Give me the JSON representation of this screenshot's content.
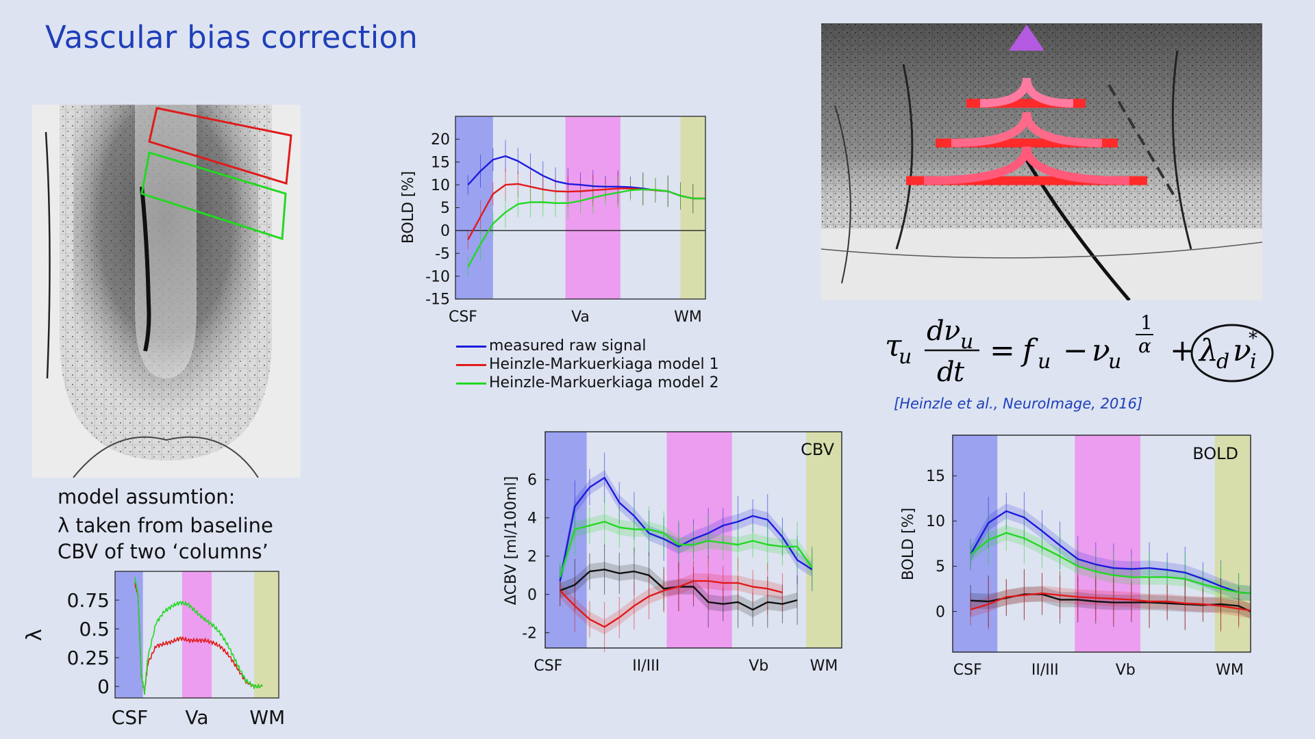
{
  "slide": {
    "title": "Vascular bias correction",
    "colors": {
      "title": "#1f3fb8",
      "csf_band": "#8f97f0",
      "va_band": "#ee90ee",
      "wm_band": "#d6dda0"
    }
  },
  "left_panel": {
    "image_icon": "cortex-vasculature-micrograph",
    "assumption_lines": [
      "model assumtion:",
      "λ taken from baseline",
      "CBV of two ‘columns’"
    ]
  },
  "top_chart": {
    "legend": [
      {
        "label": "measured raw signal",
        "color": "#1b1bdc"
      },
      {
        "label": "Heinzle-Markuerkiaga model 1",
        "color": "#e01a1a"
      },
      {
        "label": "Heinzle-Markuerkiaga model 2",
        "color": "#22d822"
      }
    ]
  },
  "right_panel": {
    "image_icon": "cortex-vasculature-micrograph-with-arrows",
    "citation": "[Heinzle et al., NeuroImage, 2016]",
    "equation": {
      "tau": "τ",
      "u": "u",
      "d": "d",
      "nu": "ν",
      "t": "t",
      "equals": "=",
      "f": "f",
      "minus": "−",
      "plus": "+",
      "one": "1",
      "alpha": "α",
      "lambda": "λ",
      "sub_d": "d",
      "sub_i": "i",
      "star": "*"
    }
  },
  "chart_data": [
    {
      "id": "lambda",
      "type": "line",
      "title": "",
      "xlabel": "",
      "ylabel": "λ",
      "x_ticks": [
        "CSF",
        "Va",
        "WM"
      ],
      "y_tick_labels": [
        "0.75",
        "0.5",
        "0.25",
        "0"
      ],
      "y_ticks": [
        0.75,
        0.5,
        0.25,
        0
      ],
      "xlim": [
        0,
        1
      ],
      "ylim": [
        -0.1,
        1.0
      ],
      "bands": [
        {
          "name": "CSF",
          "from": 0.0,
          "to": 0.17
        },
        {
          "name": "Va",
          "from": 0.41,
          "to": 0.59
        },
        {
          "name": "WM",
          "from": 0.85,
          "to": 1.0
        }
      ],
      "x": [
        0.0,
        0.1,
        0.12,
        0.14,
        0.16,
        0.18,
        0.2,
        0.25,
        0.3,
        0.35,
        0.4,
        0.45,
        0.5,
        0.55,
        0.6,
        0.65,
        0.7,
        0.75,
        0.8,
        0.85,
        0.9
      ],
      "series": [
        {
          "name": "red column",
          "color": "#e01a1a",
          "values": [
            null,
            null,
            0.9,
            0.8,
            0.1,
            -0.05,
            0.2,
            0.35,
            0.37,
            0.39,
            0.42,
            0.4,
            0.4,
            0.4,
            0.38,
            0.34,
            0.26,
            0.15,
            0.04,
            0.0,
            0.0
          ]
        },
        {
          "name": "green column",
          "color": "#22d822",
          "values": [
            null,
            null,
            0.95,
            0.8,
            0.1,
            -0.05,
            0.25,
            0.55,
            0.65,
            0.7,
            0.73,
            0.71,
            0.64,
            0.58,
            0.53,
            0.45,
            0.33,
            0.18,
            0.05,
            0.0,
            0.0
          ]
        }
      ]
    },
    {
      "id": "bold_models",
      "type": "line",
      "title": "",
      "xlabel": "",
      "ylabel": "BOLD [%]",
      "x_ticks": [
        "CSF",
        "Va",
        "WM"
      ],
      "y_tick_labels": [
        "20",
        "15",
        "10",
        "5",
        "0",
        "-5",
        "-10",
        "-15"
      ],
      "y_ticks": [
        20,
        15,
        10,
        5,
        0,
        -5,
        -10,
        -15
      ],
      "xlim": [
        0,
        1
      ],
      "ylim": [
        -15,
        25
      ],
      "bands": [
        {
          "name": "CSF",
          "from": 0.0,
          "to": 0.15
        },
        {
          "name": "Va",
          "from": 0.44,
          "to": 0.66
        },
        {
          "name": "WM",
          "from": 0.9,
          "to": 1.0
        }
      ],
      "x": [
        0.05,
        0.1,
        0.15,
        0.2,
        0.25,
        0.3,
        0.35,
        0.4,
        0.45,
        0.5,
        0.55,
        0.6,
        0.65,
        0.7,
        0.75,
        0.8,
        0.85,
        0.9,
        0.95,
        1.0
      ],
      "series": [
        {
          "name": "measured raw signal",
          "color": "#1b1bdc",
          "values": [
            10,
            13,
            15.5,
            16.3,
            15.2,
            13.6,
            12,
            10.8,
            10.2,
            10,
            9.7,
            9.6,
            9.6,
            9.5,
            9.2,
            8.8,
            8.6,
            7.6,
            7,
            7
          ]
        },
        {
          "name": "Heinzle-Markuerkiaga model 1",
          "color": "#e01a1a",
          "values": [
            -2,
            3,
            8,
            10,
            10.2,
            9.6,
            9,
            8.6,
            8.5,
            8.6,
            8.8,
            9,
            9.2,
            9.2,
            9,
            8.8,
            8.6,
            7.6,
            7,
            7
          ]
        },
        {
          "name": "Heinzle-Markuerkiaga model 2",
          "color": "#22d822",
          "values": [
            -8,
            -3,
            1.5,
            4,
            5.8,
            6.2,
            6.2,
            6,
            6,
            6.5,
            7.2,
            7.8,
            8.3,
            8.8,
            9,
            8.9,
            8.6,
            7.6,
            7,
            7
          ]
        }
      ]
    },
    {
      "id": "cbv",
      "type": "line",
      "title": "CBV",
      "xlabel": "",
      "ylabel": "ΔCBV [ml/100ml]",
      "x_ticks": [
        "CSF",
        "II/III",
        "Vb",
        "WM"
      ],
      "y_tick_labels": [
        "6",
        "4",
        "2",
        "0",
        "-2"
      ],
      "y_ticks": [
        6,
        4,
        2,
        0,
        -2
      ],
      "xlim": [
        0,
        1
      ],
      "ylim": [
        -2.8,
        8.5
      ],
      "bands": [
        {
          "name": "CSF",
          "from": 0.0,
          "to": 0.14
        },
        {
          "name": "Va",
          "from": 0.41,
          "to": 0.63
        },
        {
          "name": "WM",
          "from": 0.88,
          "to": 1.0
        }
      ],
      "x": [
        0.05,
        0.1,
        0.15,
        0.2,
        0.25,
        0.3,
        0.35,
        0.4,
        0.45,
        0.5,
        0.55,
        0.6,
        0.65,
        0.7,
        0.75,
        0.8,
        0.85,
        0.9,
        0.95,
        1.0
      ],
      "series": [
        {
          "name": "blue",
          "color": "#1b1bdc",
          "values": [
            0.7,
            4.6,
            5.6,
            6.1,
            4.8,
            4.1,
            3.2,
            2.9,
            2.5,
            2.9,
            3.2,
            3.6,
            3.8,
            4.1,
            3.9,
            3.0,
            1.8,
            1.3,
            null,
            null
          ]
        },
        {
          "name": "green",
          "color": "#22d822",
          "values": [
            0.9,
            3.4,
            3.6,
            3.8,
            3.5,
            3.4,
            3.4,
            3.2,
            2.6,
            2.6,
            2.8,
            2.7,
            2.6,
            2.8,
            2.6,
            2.5,
            2.5,
            1.4,
            null,
            null
          ]
        },
        {
          "name": "black",
          "color": "#111111",
          "values": [
            0.2,
            0.5,
            1.2,
            1.3,
            1.1,
            1.2,
            1.0,
            0.3,
            0.4,
            0.4,
            -0.4,
            -0.5,
            -0.4,
            -0.8,
            -0.4,
            -0.5,
            -0.3,
            null,
            null,
            null
          ]
        },
        {
          "name": "red",
          "color": "#e01a1a",
          "values": [
            0.2,
            -0.6,
            -1.3,
            -1.7,
            -1.2,
            -0.6,
            -0.1,
            0.2,
            0.4,
            0.7,
            0.7,
            0.6,
            0.6,
            0.4,
            0.3,
            0.1,
            null,
            null,
            null,
            null
          ]
        }
      ]
    },
    {
      "id": "bold_laminar",
      "type": "line",
      "title": "BOLD",
      "xlabel": "",
      "ylabel": "BOLD [%]",
      "x_ticks": [
        "CSF",
        "II/III",
        "Vb",
        "WM"
      ],
      "y_tick_labels": [
        "15",
        "10",
        "5",
        "0"
      ],
      "y_ticks": [
        15,
        10,
        5,
        0
      ],
      "xlim": [
        0,
        1
      ],
      "ylim": [
        -4.5,
        19.5
      ],
      "bands": [
        {
          "name": "CSF",
          "from": 0.0,
          "to": 0.15
        },
        {
          "name": "Va",
          "from": 0.41,
          "to": 0.63
        },
        {
          "name": "WM",
          "from": 0.88,
          "to": 1.0
        }
      ],
      "x": [
        0.06,
        0.12,
        0.18,
        0.24,
        0.3,
        0.36,
        0.42,
        0.48,
        0.54,
        0.6,
        0.66,
        0.72,
        0.78,
        0.84,
        0.9,
        0.96,
        1.0
      ],
      "series": [
        {
          "name": "blue",
          "color": "#1b1bdc",
          "values": [
            6.3,
            9.8,
            11.1,
            10.4,
            8.9,
            7.3,
            5.8,
            5.2,
            4.8,
            4.7,
            4.8,
            4.6,
            4.3,
            3.6,
            2.8,
            2.1,
            2.0
          ]
        },
        {
          "name": "green",
          "color": "#22d822",
          "values": [
            6.3,
            7.9,
            8.7,
            8.1,
            7.1,
            6.1,
            5.0,
            4.4,
            4.0,
            3.8,
            3.8,
            3.8,
            3.6,
            3.0,
            2.5,
            2.1,
            2.0
          ]
        },
        {
          "name": "black",
          "color": "#111111",
          "values": [
            1.2,
            1.1,
            1.5,
            1.9,
            1.9,
            1.3,
            1.3,
            1.1,
            1.0,
            1.0,
            1.0,
            0.9,
            0.8,
            0.7,
            0.8,
            0.6,
            0.0
          ]
        },
        {
          "name": "red",
          "color": "#e01a1a",
          "values": [
            0.2,
            0.8,
            1.6,
            1.8,
            2.0,
            1.8,
            1.6,
            1.5,
            1.4,
            1.3,
            1.1,
            1.1,
            0.9,
            0.8,
            0.6,
            0.3,
            0.1
          ]
        }
      ]
    }
  ]
}
